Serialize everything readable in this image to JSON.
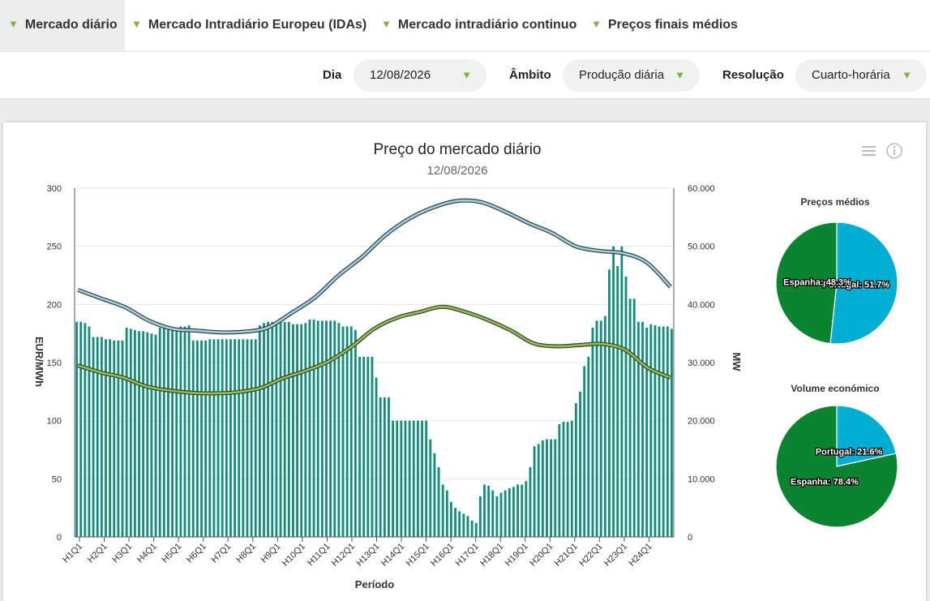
{
  "tabs": [
    {
      "label": "Mercado diário",
      "active": true
    },
    {
      "label": "Mercado Intradiário Europeu (IDAs)",
      "active": false
    },
    {
      "label": "Mercado intradiário continuo",
      "active": false
    },
    {
      "label": "Preços finais médios",
      "active": false
    }
  ],
  "filters": {
    "day_label": "Dia",
    "day_value": "12/08/2026",
    "scope_label": "Âmbito",
    "scope_value": "Produção diária",
    "resolution_label": "Resolução",
    "resolution_value": "Cuarto-horária"
  },
  "colors": {
    "accent": "#7cb342",
    "bars": "#138d7b",
    "portugal": "#00add3",
    "espanha": "#0a8431",
    "blue_line": "#9ad3e6",
    "green_line": "#8bc34a"
  },
  "icons": {
    "menu": "menu-icon",
    "info": "info-icon",
    "dropdown": "triangle-down-icon"
  },
  "chart_data": [
    {
      "type": "bar-line",
      "title": "Preço do mercado diário",
      "subtitle": "12/08/2026",
      "xlabel": "Período",
      "ylabel_left": "EUR/MWh",
      "ylabel_right": "MW",
      "ylim_left": [
        0,
        300
      ],
      "ylim_right": [
        0,
        60000
      ],
      "yticks_left": [
        "0",
        "50",
        "100",
        "150",
        "200",
        "250",
        "300"
      ],
      "yticks_right": [
        "0",
        "10.000",
        "20.000",
        "30.000",
        "40.000",
        "50.000",
        "60.000"
      ],
      "grid": true,
      "x_ticks": [
        "H1Q1",
        "H2Q1",
        "H3Q1",
        "H4Q1",
        "H5Q1",
        "H6Q1",
        "H7Q1",
        "H8Q1",
        "H9Q1",
        "H10Q1",
        "H11Q1",
        "H12Q1",
        "H13Q1",
        "H14Q1",
        "H15Q1",
        "H16Q1",
        "H17Q1",
        "H18Q1",
        "H19Q1",
        "H20Q1",
        "H21Q1",
        "H22Q1",
        "H23Q1",
        "H24Q1"
      ],
      "bars_hourly_eur_mwh": [
        [
          185,
          185,
          184,
          181
        ],
        [
          172,
          172,
          172,
          170
        ],
        [
          170,
          169,
          169,
          169
        ],
        [
          180,
          179,
          178,
          177
        ],
        [
          177,
          176,
          175,
          174
        ],
        [
          180,
          180,
          180,
          180
        ],
        [
          180,
          181,
          181,
          182
        ],
        [
          169,
          169,
          169,
          169
        ],
        [
          170,
          170,
          170,
          170
        ],
        [
          170,
          170,
          170,
          170
        ],
        [
          170,
          170,
          170,
          170
        ],
        [
          182,
          184,
          185,
          185
        ],
        [
          185,
          185,
          185,
          185
        ],
        [
          183,
          183,
          183,
          184
        ],
        [
          187,
          187,
          186,
          186
        ],
        [
          186,
          186,
          186,
          184
        ],
        [
          181,
          181,
          181,
          178
        ],
        [
          155,
          155,
          155,
          155
        ],
        [
          137,
          120,
          120,
          120
        ],
        [
          100,
          100,
          100,
          100
        ],
        [
          100,
          100,
          100,
          100
        ],
        [
          100,
          84,
          72,
          60
        ],
        [
          45,
          40,
          30,
          25
        ],
        [
          22,
          20,
          18,
          14
        ],
        [
          12,
          35,
          45,
          44
        ],
        [
          40,
          35,
          38,
          40
        ],
        [
          42,
          43,
          45,
          45
        ],
        [
          48,
          60,
          78,
          80
        ],
        [
          83,
          84,
          84,
          84
        ],
        [
          97,
          99,
          99,
          100
        ],
        [
          115,
          125,
          147,
          155
        ],
        [
          180,
          186,
          186,
          190
        ],
        [
          230,
          250,
          233,
          250
        ],
        [
          224,
          205,
          205,
          185
        ],
        [
          185,
          180,
          183,
          182
        ],
        [
          181,
          181,
          181,
          179
        ]
      ],
      "series": [
        {
          "name": "",
          "axis": "right",
          "color": "#9ad3e6",
          "values": [
            42500,
            41000,
            39500,
            37200,
            35800,
            35500,
            35200,
            35300,
            36000,
            38500,
            41200,
            45000,
            48200,
            52000,
            54800,
            56700,
            57800,
            57600,
            56000,
            54000,
            52300,
            50000,
            49200,
            48800,
            47200,
            43000
          ]
        },
        {
          "name": "",
          "axis": "right",
          "color": "#8bc34a",
          "values": [
            29500,
            28300,
            27400,
            25900,
            25200,
            24800,
            24700,
            24900,
            25600,
            27300,
            28600,
            30200,
            32700,
            35800,
            37700,
            38700,
            39600,
            38700,
            37300,
            35500,
            33300,
            32800,
            33000,
            33200,
            32200,
            29100,
            27400
          ]
        }
      ],
      "bars_series": {
        "name": "",
        "axis": "left",
        "color": "#138d7b"
      }
    },
    {
      "type": "pie",
      "title": "Preços médios",
      "slices": [
        {
          "label": "Portugal",
          "value": 51.7,
          "text": "Portugal: 51.7%",
          "color": "#00add3"
        },
        {
          "label": "Espanha",
          "value": 48.3,
          "text": "Espanha: 48.3%",
          "color": "#0a8431"
        }
      ]
    },
    {
      "type": "pie",
      "title": "Volume económico",
      "slices": [
        {
          "label": "Portugal",
          "value": 21.6,
          "text": "Portugal: 21.6%",
          "color": "#00add3"
        },
        {
          "label": "Espanha",
          "value": 78.4,
          "text": "Espanha: 78.4%",
          "color": "#0a8431"
        }
      ]
    }
  ]
}
